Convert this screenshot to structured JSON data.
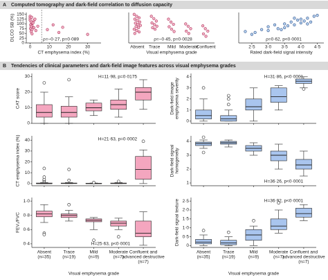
{
  "sections": [
    {
      "letter": "A",
      "title": "Computed tomography and dark-field correlation to diffusion capacity"
    },
    {
      "letter": "B",
      "title": "Tendencies of clinical parameters and dark-field image features across visual emphysema grades"
    }
  ],
  "chart_data": [
    {
      "type": "scatter",
      "color": "#f3b6c8",
      "stroke": "#b0305a",
      "y_label": [
        "DLCO SB (%)"
      ],
      "x_label": "CT emphysema index (%)",
      "annotation": "ρ=−0·27, p=0·089",
      "xlim": [
        -2,
        37
      ],
      "xticks": [
        0,
        10,
        20,
        30
      ],
      "ylim": [
        0,
        160
      ],
      "yticks": [
        0,
        25,
        50,
        75,
        100,
        125,
        150
      ],
      "reference_line_x": 6,
      "x": [
        0,
        0,
        0,
        0.5,
        1,
        0.3,
        1,
        0.5,
        2,
        0.2,
        1,
        3,
        0.5,
        2,
        1.5,
        4,
        9,
        12,
        17,
        15,
        30,
        0.8,
        2.5,
        1
      ],
      "y": [
        140,
        130,
        120,
        110,
        100,
        95,
        90,
        85,
        80,
        75,
        70,
        65,
        60,
        118,
        105,
        88,
        70,
        95,
        82,
        55,
        45,
        135,
        125,
        48
      ]
    },
    {
      "type": "strip",
      "color": "#f3b6c8",
      "stroke": "#b0305a",
      "x_label": "Visual emphysema grade",
      "annotation": "ρ=−0·45, p=0·0028",
      "ylim": [
        0,
        160
      ],
      "categories": [
        "Absent",
        "Trace",
        "Mild",
        "Moderate",
        "Confluent"
      ],
      "groups": [
        [
          150,
          140,
          132,
          125,
          118,
          110,
          104,
          98,
          92,
          86,
          80,
          72,
          65,
          58,
          50
        ],
        [
          140,
          128,
          115,
          105,
          96,
          88,
          80,
          72
        ],
        [
          125,
          110,
          98,
          85,
          72,
          60
        ],
        [
          100,
          88,
          75,
          62,
          50
        ],
        [
          90,
          75,
          62,
          48,
          35
        ]
      ]
    },
    {
      "type": "scatter",
      "color": "#b7d3f0",
      "stroke": "#2d4f8a",
      "x_label": "Rated dark-field signal intensity",
      "annotation": "ρ=0·62, p<0·0001",
      "xlim": [
        2.1,
        4.7
      ],
      "xticks": [
        {
          "value": 2.5,
          "label": "2·5"
        },
        {
          "value": 3,
          "label": "3·0"
        },
        {
          "value": 3.5,
          "label": "3·5"
        },
        {
          "value": 4,
          "label": "4·0"
        },
        {
          "value": 4.5,
          "label": "4·5"
        }
      ],
      "ylim": [
        0,
        160
      ],
      "x": [
        2.3,
        2.5,
        2.8,
        3.0,
        3.0,
        3.2,
        3.3,
        3.5,
        3.5,
        3.6,
        3.7,
        3.8,
        3.9,
        4.0,
        4.0,
        4.1,
        4.2,
        4.3,
        4.4,
        4.5,
        3.4,
        2.6,
        3.8,
        4.2
      ],
      "y": [
        60,
        45,
        70,
        65,
        85,
        95,
        75,
        80,
        100,
        90,
        110,
        95,
        120,
        105,
        125,
        115,
        130,
        110,
        140,
        145,
        70,
        55,
        130,
        100
      ]
    },
    {
      "type": "box",
      "color": "#f4a6bf",
      "stroke": "#b03a66",
      "y_label": [
        "CAT score"
      ],
      "annotation": "H=11·98, p=0·0175",
      "ylim": [
        0,
        32
      ],
      "yticks": [
        0,
        10,
        20,
        30
      ],
      "boxes": [
        {
          "min": 0,
          "q1": 4,
          "median": 7,
          "q3": 12,
          "max": 20,
          "outliers": [
            26
          ]
        },
        {
          "min": 0,
          "q1": 4,
          "median": 7,
          "q3": 11,
          "max": 17,
          "outliers": [
            28
          ]
        },
        {
          "min": 5,
          "q1": 8,
          "median": 10,
          "q3": 13,
          "max": 15,
          "outliers": []
        },
        {
          "min": 4,
          "q1": 9,
          "median": 12,
          "q3": 15,
          "max": 22,
          "outliers": []
        },
        {
          "min": 9,
          "q1": 15,
          "median": 20,
          "q3": 23,
          "max": 28,
          "outliers": []
        }
      ]
    },
    {
      "type": "box",
      "color": "#a9c5ee",
      "stroke": "#2d4f8a",
      "y_label": [
        "Dark-field image",
        "emphysema severity"
      ],
      "annotation": "H=31·86, p<0·0001",
      "ylim": [
        -0.2,
        4.3
      ],
      "yticks": [
        0,
        1,
        2,
        3,
        4
      ],
      "boxes": [
        {
          "min": 0,
          "q1": 0.2,
          "median": 0.5,
          "q3": 1,
          "max": 2,
          "outliers": [
            3
          ]
        },
        {
          "min": 0,
          "q1": 0,
          "median": 0.2,
          "q3": 0.5,
          "max": 1,
          "outliers": [
            1.5,
            2,
            2.3
          ]
        },
        {
          "min": 0,
          "q1": 1,
          "median": 1.3,
          "q3": 2,
          "max": 3,
          "outliers": []
        },
        {
          "min": 1,
          "q1": 1.7,
          "median": 2.2,
          "q3": 3,
          "max": 3.2,
          "outliers": []
        },
        {
          "min": 3,
          "q1": 3.4,
          "median": 3.6,
          "q3": 3.8,
          "max": 4,
          "outliers": [
            2.9
          ]
        }
      ]
    },
    {
      "type": "box",
      "color": "#f4a6bf",
      "stroke": "#b03a66",
      "y_label": [
        "CT emphysema index (%)"
      ],
      "annotation": "H=21·63, p=0·0002",
      "ylim": [
        -2,
        44
      ],
      "yticks": [
        0,
        10,
        20,
        30,
        40
      ],
      "boxes": [
        {
          "min": 0,
          "q1": 0,
          "median": 0,
          "q3": 0.5,
          "max": 1,
          "outliers": [
            2,
            3,
            4,
            6,
            14
          ]
        },
        {
          "min": 0,
          "q1": 0,
          "median": 0.2,
          "q3": 0.5,
          "max": 1,
          "outliers": [
            3,
            13
          ]
        },
        {
          "min": 0,
          "q1": 0,
          "median": 0,
          "q3": 0.3,
          "max": 0.5,
          "outliers": [
            1
          ]
        },
        {
          "min": 0,
          "q1": 0,
          "median": 0.1,
          "q3": 0.5,
          "max": 1,
          "outliers": [
            2
          ]
        },
        {
          "min": 0,
          "q1": 4,
          "median": 13,
          "q3": 25,
          "max": 31,
          "outliers": [
            39
          ]
        }
      ]
    },
    {
      "type": "box",
      "color": "#a9c5ee",
      "stroke": "#2d4f8a",
      "y_label": [
        "Dark-field signal",
        "homogeneity"
      ],
      "annotation": "H=36·26, p<0·0001",
      "ylim": [
        0.8,
        4.4
      ],
      "yticks": [
        1,
        2,
        3,
        4
      ],
      "boxes": [
        {
          "min": 3.5,
          "q1": 3.7,
          "median": 3.85,
          "q3": 3.95,
          "max": 4.1,
          "outliers": [
            4.3,
            3.2
          ]
        },
        {
          "min": 3.6,
          "q1": 3.8,
          "median": 3.9,
          "q3": 4,
          "max": 4.1,
          "outliers": []
        },
        {
          "min": 3,
          "q1": 3.3,
          "median": 3.5,
          "q3": 3.7,
          "max": 3.9,
          "outliers": []
        },
        {
          "min": 2,
          "q1": 2.6,
          "median": 3,
          "q3": 3.3,
          "max": 3.8,
          "outliers": []
        },
        {
          "min": 1.5,
          "q1": 2,
          "median": 2.3,
          "q3": 2.7,
          "max": 3.3,
          "outliers": []
        }
      ]
    },
    {
      "type": "box",
      "color": "#f4a6bf",
      "stroke": "#b03a66",
      "y_label": [
        "FEV₁/FVC"
      ],
      "annotation": "H=25·63, p<0·0001",
      "x_label": "Visual emphysema grade",
      "ylim": [
        0.35,
        1.05
      ],
      "yticks": [
        {
          "value": 0.4,
          "label": "0·4"
        },
        {
          "value": 0.6,
          "label": "0·6"
        },
        {
          "value": 0.8,
          "label": "0·8"
        },
        {
          "value": 1,
          "label": "1·0"
        }
      ],
      "categories": [
        [
          "Absent"
        ],
        [
          "Trace"
        ],
        [
          "Mild"
        ],
        [
          "Moderate"
        ],
        [
          "Confluent and",
          "advanced destructive"
        ]
      ],
      "n_labels": [
        "(n=35)",
        "(n=19)",
        "(n=9)",
        "(n=7)",
        "(n=7)"
      ],
      "boxes": [
        {
          "min": 0.7,
          "q1": 0.78,
          "median": 0.82,
          "q3": 0.86,
          "max": 0.95,
          "outliers": [
            0.55,
            0.53
          ]
        },
        {
          "min": 0.72,
          "q1": 0.77,
          "median": 0.8,
          "q3": 0.82,
          "max": 0.87,
          "outliers": [
            0.95
          ]
        },
        {
          "min": 0.6,
          "q1": 0.71,
          "median": 0.73,
          "q3": 0.75,
          "max": 0.77,
          "outliers": [
            0.45
          ]
        },
        {
          "min": 0.6,
          "q1": 0.65,
          "median": 0.69,
          "q3": 0.72,
          "max": 0.76,
          "outliers": [
            0.5
          ]
        },
        {
          "min": 0.38,
          "q1": 0.5,
          "median": 0.55,
          "q3": 0.72,
          "max": 0.85,
          "outliers": []
        }
      ]
    },
    {
      "type": "box",
      "color": "#a9c5ee",
      "stroke": "#2d4f8a",
      "y_label": [
        "Dark-field signal texture"
      ],
      "annotation": "H=36·92, p<0·0001",
      "x_label": "Visual emphysema grade",
      "ylim": [
        -0.1,
        2.7
      ],
      "yticks": [
        0,
        {
          "value": 0.5,
          "label": "0·5"
        },
        {
          "value": 1,
          "label": "1·0"
        },
        {
          "value": 1.5,
          "label": "1·5"
        },
        {
          "value": 2,
          "label": "2·0"
        },
        {
          "value": 2.5,
          "label": "2·5"
        }
      ],
      "categories": [
        [
          "Absent"
        ],
        [
          "Trace"
        ],
        [
          "Mild"
        ],
        [
          "Moderate"
        ],
        [
          "Confluent and",
          "advanced destructive"
        ]
      ],
      "n_labels": [
        "(n=35)",
        "(n=19)",
        "(n=9)",
        "(n=7)",
        "(n=7)"
      ],
      "boxes": [
        {
          "min": 0,
          "q1": 0.1,
          "median": 0.2,
          "q3": 0.35,
          "max": 0.6,
          "outliers": [
            0.85
          ]
        },
        {
          "min": 0,
          "q1": 0.05,
          "median": 0.15,
          "q3": 0.3,
          "max": 0.5,
          "outliers": [
            0.75
          ]
        },
        {
          "min": 0,
          "q1": 0.3,
          "median": 0.6,
          "q3": 0.9,
          "max": 1.1,
          "outliers": [
            1.4
          ]
        },
        {
          "min": 0.7,
          "q1": 0.9,
          "median": 1.1,
          "q3": 1.5,
          "max": 2,
          "outliers": [
            2.4
          ]
        },
        {
          "min": 1.4,
          "q1": 1.6,
          "median": 1.8,
          "q3": 2.1,
          "max": 2.3,
          "outliers": []
        }
      ]
    }
  ]
}
